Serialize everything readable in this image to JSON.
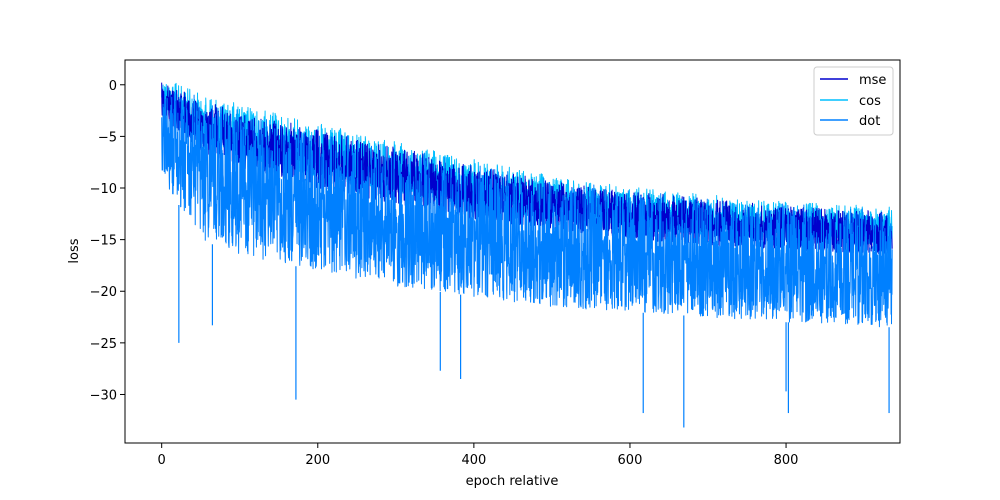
{
  "chart_data": {
    "type": "line",
    "title": "",
    "xlabel": "epoch relative",
    "ylabel": "loss",
    "xlim": [
      -47,
      946
    ],
    "ylim": [
      -34.7,
      2.4
    ],
    "x_ticks": [
      0,
      200,
      400,
      600,
      800
    ],
    "x_tick_labels": [
      "0",
      "200",
      "400",
      "600",
      "800"
    ],
    "y_ticks": [
      0,
      -5,
      -10,
      -15,
      -20,
      -25,
      -30
    ],
    "y_tick_labels": [
      "0",
      "−5",
      "−10",
      "−15",
      "−20",
      "−25",
      "−30"
    ],
    "grid": false,
    "legend": {
      "position": "top-right",
      "entries": [
        "mse",
        "cos",
        "dot"
      ]
    },
    "x_range": [
      0,
      936
    ],
    "series": [
      {
        "name": "mse",
        "color": "#0000cd",
        "x": [
          0,
          50,
          100,
          200,
          300,
          400,
          500,
          600,
          700,
          800,
          936
        ],
        "upper": [
          0.5,
          -1.5,
          -2.5,
          -4.3,
          -6.0,
          -7.8,
          -9.3,
          -10.3,
          -11.0,
          -11.7,
          -12.2
        ],
        "lower": [
          -3,
          -6.5,
          -8.0,
          -10.0,
          -11.5,
          -13.0,
          -14.0,
          -15.0,
          -15.5,
          -16.0,
          -16.5
        ]
      },
      {
        "name": "cos",
        "color": "#00bfff",
        "x": [
          0,
          50,
          100,
          200,
          300,
          400,
          500,
          600,
          700,
          800,
          936
        ],
        "upper": [
          0.8,
          -0.8,
          -1.8,
          -3.7,
          -5.5,
          -7.2,
          -8.8,
          -9.9,
          -10.6,
          -11.3,
          -11.8
        ],
        "lower": [
          -2,
          -5.5,
          -7.0,
          -9.0,
          -10.5,
          -12.0,
          -13.0,
          -14.0,
          -14.6,
          -15.1,
          -15.6
        ]
      },
      {
        "name": "dot",
        "color": "#0080ff",
        "x": [
          0,
          50,
          100,
          200,
          300,
          400,
          500,
          600,
          700,
          800,
          936
        ],
        "upper": [
          0.6,
          -1.3,
          -2.3,
          -4.1,
          -5.8,
          -7.6,
          -9.1,
          -10.2,
          -10.9,
          -11.5,
          -12.0
        ],
        "lower": [
          -9,
          -15.0,
          -16.5,
          -18.0,
          -19.5,
          -20.5,
          -21.5,
          -22.0,
          -22.5,
          -23.0,
          -23.5
        ],
        "spikes": [
          {
            "x": 22,
            "y": -25.0
          },
          {
            "x": 65,
            "y": -23.3
          },
          {
            "x": 172,
            "y": -30.5
          },
          {
            "x": 357,
            "y": -27.7
          },
          {
            "x": 383,
            "y": -28.5
          },
          {
            "x": 617,
            "y": -31.8
          },
          {
            "x": 669,
            "y": -33.2
          },
          {
            "x": 800,
            "y": -29.7
          },
          {
            "x": 803,
            "y": -31.8
          },
          {
            "x": 932,
            "y": -31.8
          }
        ]
      }
    ]
  }
}
